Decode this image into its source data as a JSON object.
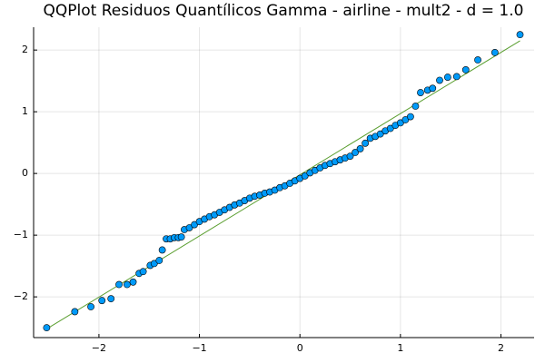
{
  "chart_data": {
    "type": "scatter",
    "title": "QQPlot Residuos Quantílicos Gamma - airline - mult2 - d = 1.0",
    "xlim": [
      -2.65,
      2.33
    ],
    "ylim": [
      -2.66,
      2.37
    ],
    "xticks": [
      {
        "value": -2,
        "label": "−2"
      },
      {
        "value": -1,
        "label": "−1"
      },
      0,
      1,
      2
    ],
    "yticks": [
      {
        "value": -2,
        "label": "−2"
      },
      {
        "value": -1,
        "label": "−1"
      },
      0,
      1,
      2
    ],
    "grid": true,
    "series": [
      {
        "mode": "line",
        "color": "#5a9e2f",
        "x": [
          -2.52,
          2.19
        ],
        "values": [
          -2.52,
          2.15
        ]
      },
      {
        "mode": "markers",
        "color": "#009af9",
        "x": [
          -2.52,
          -2.24,
          -2.08,
          -1.97,
          -1.88,
          -1.8,
          -1.72,
          -1.66,
          -1.6,
          -1.56,
          -1.49,
          -1.45,
          -1.4,
          -1.37,
          -1.33,
          -1.29,
          -1.25,
          -1.21,
          -1.18,
          -1.15,
          -1.1,
          -1.05,
          -1.0,
          -0.95,
          -0.9,
          -0.85,
          -0.8,
          -0.75,
          -0.7,
          -0.65,
          -0.6,
          -0.55,
          -0.5,
          -0.45,
          -0.4,
          -0.35,
          -0.3,
          -0.25,
          -0.2,
          -0.15,
          -0.1,
          -0.05,
          0.0,
          0.05,
          0.1,
          0.15,
          0.2,
          0.25,
          0.3,
          0.35,
          0.4,
          0.45,
          0.5,
          0.55,
          0.6,
          0.65,
          0.7,
          0.75,
          0.8,
          0.85,
          0.9,
          0.95,
          1.0,
          1.05,
          1.1,
          1.15,
          1.2,
          1.27,
          1.32,
          1.39,
          1.47,
          1.56,
          1.65,
          1.77,
          1.94,
          2.19
        ],
        "values": [
          -2.5,
          -2.24,
          -2.16,
          -2.06,
          -2.03,
          -1.8,
          -1.8,
          -1.76,
          -1.62,
          -1.59,
          -1.49,
          -1.46,
          -1.41,
          -1.24,
          -1.06,
          -1.06,
          -1.04,
          -1.04,
          -1.03,
          -0.91,
          -0.88,
          -0.83,
          -0.78,
          -0.74,
          -0.7,
          -0.67,
          -0.63,
          -0.59,
          -0.55,
          -0.51,
          -0.48,
          -0.44,
          -0.4,
          -0.37,
          -0.35,
          -0.32,
          -0.3,
          -0.27,
          -0.23,
          -0.2,
          -0.16,
          -0.12,
          -0.08,
          -0.04,
          0.01,
          0.05,
          0.09,
          0.13,
          0.16,
          0.19,
          0.22,
          0.25,
          0.28,
          0.34,
          0.4,
          0.49,
          0.57,
          0.6,
          0.64,
          0.69,
          0.73,
          0.78,
          0.82,
          0.87,
          0.92,
          1.09,
          1.31,
          1.35,
          1.38,
          1.51,
          1.56,
          1.57,
          1.68,
          1.84,
          1.96,
          2.25
        ]
      }
    ]
  }
}
